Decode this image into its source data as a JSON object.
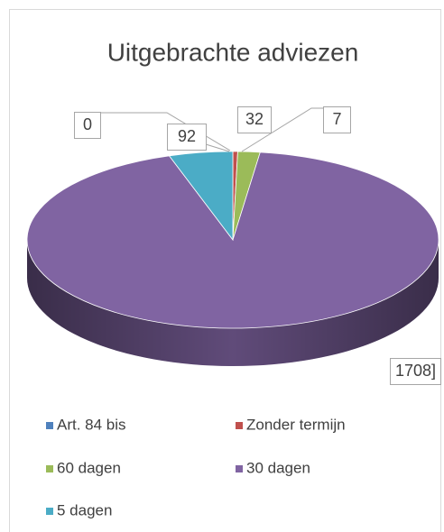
{
  "chart_data": {
    "type": "pie",
    "title": "Uitgebrachte adviezen",
    "categories": [
      "Art. 84 bis",
      "Zonder termijn",
      "60 dagen",
      "30 dagen",
      "5 dagen"
    ],
    "values": [
      0,
      7,
      32,
      1708,
      92
    ],
    "value_labels": [
      "0",
      "7",
      "32",
      "1708]",
      "92"
    ],
    "colors": [
      "#4f81bd",
      "#c0504d",
      "#9bbb59",
      "#8064a2",
      "#4bacc6"
    ],
    "legend": "bottom"
  }
}
